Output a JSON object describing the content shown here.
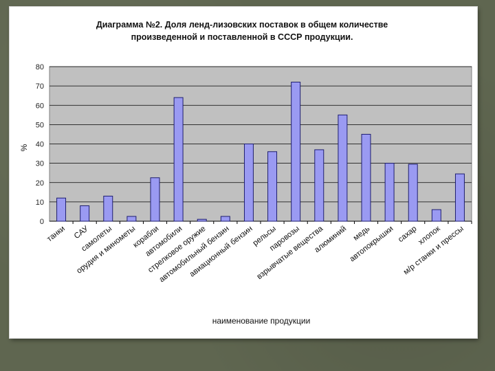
{
  "chart_data": {
    "type": "bar",
    "title_lines": [
      "Диаграмма №2. Доля ленд-лизовских поставок в общем количестве",
      "произведенной и поставленной в СССР продукции."
    ],
    "xlabel": "наименование продукции",
    "ylabel": "%",
    "ylim": [
      0,
      80
    ],
    "yticks": [
      "0",
      "10",
      "20",
      "30",
      "40",
      "50",
      "60",
      "70",
      "80"
    ],
    "grid": true,
    "legend": "none",
    "categories": [
      "танки",
      "САУ",
      "самолеты",
      "орудия и минометы",
      "корабли",
      "автомобили",
      "стрелковое оружие",
      "автомобильный бензин",
      "авиационный бензин",
      "рельсы",
      "паровозы",
      "взрывчатые вещества",
      "алюминий",
      "медь",
      "автопокрышки",
      "сахар",
      "хлопок",
      "м/р станки и прессы"
    ],
    "values": [
      12,
      8,
      13,
      2.5,
      22.5,
      64,
      1,
      2.5,
      40,
      36,
      72,
      37,
      55,
      45,
      30,
      29.5,
      6,
      24.5
    ],
    "colors": {
      "bar_fill": "#9a9af2",
      "bar_stroke": "#1d1d6e",
      "plot_bg": "#c0c0c0",
      "grid": "#000000"
    }
  }
}
